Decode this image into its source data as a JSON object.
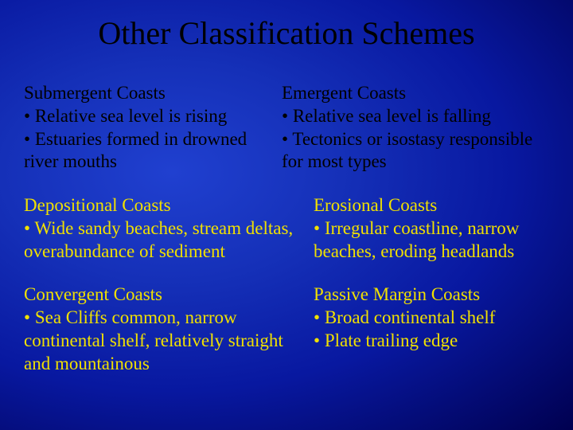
{
  "slide": {
    "title": "Other Classification Schemes",
    "title_fontsize": 40,
    "title_color": "#000000",
    "background_gradient": [
      "#2040d0",
      "#1530b8",
      "#0818a0",
      "#000050"
    ],
    "bullet_char": "•",
    "sections": [
      {
        "left": {
          "heading": "Submergent Coasts",
          "color": "#000000",
          "bullets": [
            "Relative sea level is rising",
            "Estuaries formed in drowned river mouths"
          ]
        },
        "right": {
          "heading": "Emergent Coasts",
          "color": "#000000",
          "bullets": [
            "Relative sea level is falling",
            "Tectonics or isostasy responsible for most types"
          ]
        }
      },
      {
        "left": {
          "heading": "Depositional Coasts",
          "color": "#f0e000",
          "bullets": [
            "Wide sandy beaches, stream deltas, overabundance of sediment"
          ]
        },
        "right": {
          "heading": "Erosional Coasts",
          "color": "#f0e000",
          "bullets": [
            "Irregular coastline, narrow beaches, eroding headlands"
          ]
        }
      },
      {
        "left": {
          "heading": "Convergent Coasts",
          "color": "#f0e000",
          "bullets": [
            "Sea Cliffs common, narrow continental shelf, relatively straight and mountainous"
          ]
        },
        "right": {
          "heading": "Passive Margin Coasts",
          "color": "#f0e000",
          "bullets": [
            "Broad continental shelf",
            "Plate trailing edge"
          ]
        }
      }
    ],
    "body_fontsize": 23,
    "line_height": 1.25
  }
}
